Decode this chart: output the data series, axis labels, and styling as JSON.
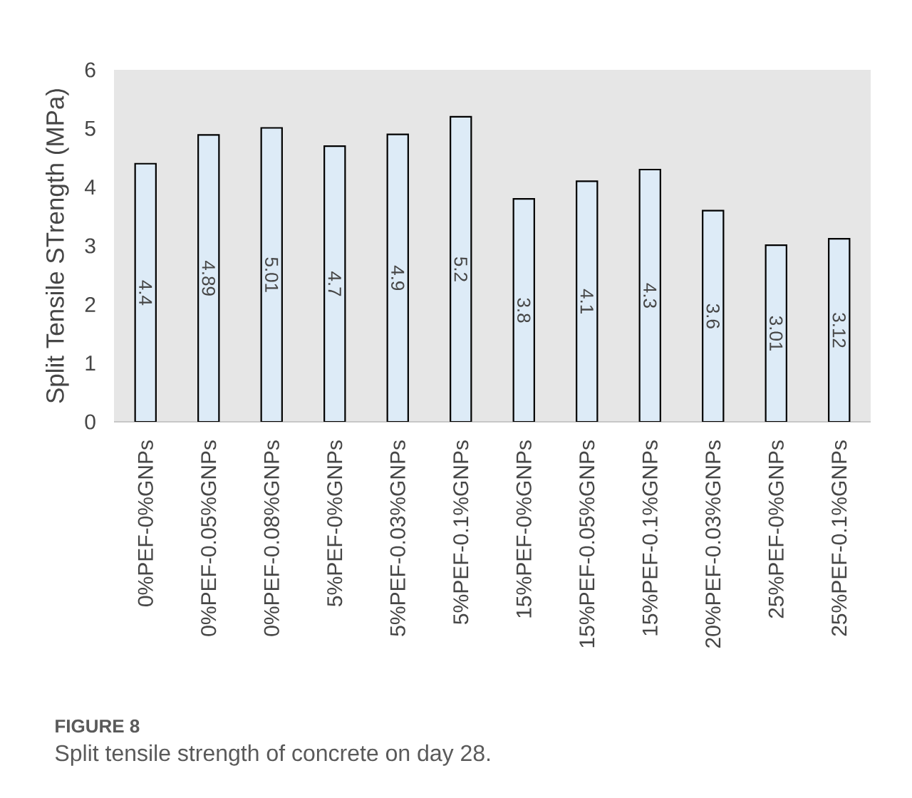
{
  "chart_data": {
    "type": "bar",
    "ylabel": "Split Tensile STrength (MPa)",
    "categories": [
      "0%PEF-0%GNPs",
      "0%PEF-0.05%GNPs",
      "0%PEF-0.08%GNPs",
      "5%PEF-0%GNPs",
      "5%PEF-0.03%GNPs",
      "5%PEF-0.1%GNPs",
      "15%PEF-0%GNPs",
      "15%PEF-0.05%GNPs",
      "15%PEF-0.1%GNPs",
      "20%PEF-0.03%GNPs",
      "25%PEF-0%GNPs",
      "25%PEF-0.1%GNPs"
    ],
    "values": [
      4.4,
      4.89,
      5.01,
      4.7,
      4.9,
      5.2,
      3.8,
      4.1,
      4.3,
      3.6,
      3.01,
      3.12
    ],
    "color": "#ddebf7",
    "ylim": [
      0,
      6
    ],
    "yticks": [
      0,
      1,
      2,
      3,
      4,
      5,
      6
    ],
    "data_labels": true,
    "grid": false,
    "annotations": [
      "FIGURE 8",
      "Split tensile strength of concrete on day 28."
    ]
  }
}
